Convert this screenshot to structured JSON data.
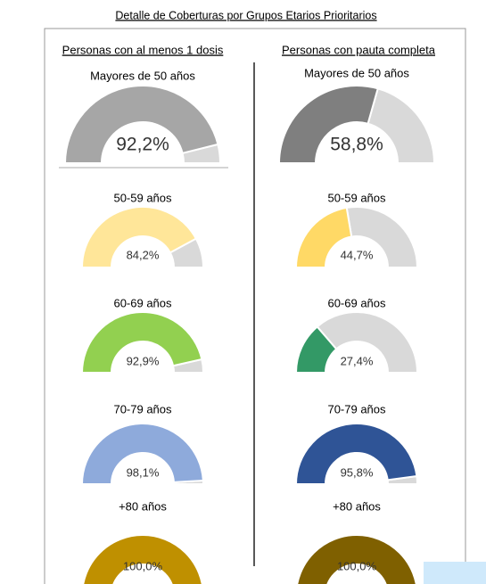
{
  "title": "Detalle de Coberturas por Grupos Etarios Prioritarios",
  "column_headings": [
    "Personas con al menos 1 dosis",
    "Personas con pauta completa"
  ],
  "chart_data": [
    {
      "type": "gauge",
      "title": "Mayores de 50 años",
      "values": [
        92.2
      ],
      "value_labels": [
        "92,2%"
      ],
      "color": "#a6a6a6",
      "ylim": [
        0,
        100
      ]
    },
    {
      "type": "gauge",
      "title": "50-59 años",
      "values": [
        84.2
      ],
      "value_labels": [
        "84,2%"
      ],
      "color": "#ffe699",
      "ylim": [
        0,
        100
      ]
    },
    {
      "type": "gauge",
      "title": "60-69 años",
      "values": [
        92.9
      ],
      "value_labels": [
        "92,9%"
      ],
      "color": "#92d050",
      "ylim": [
        0,
        100
      ]
    },
    {
      "type": "gauge",
      "title": "70-79 años",
      "values": [
        98.1
      ],
      "value_labels": [
        "98,1%"
      ],
      "color": "#8eaadb",
      "ylim": [
        0,
        100
      ]
    },
    {
      "type": "gauge",
      "title": "+80 años",
      "values": [
        100.0
      ],
      "value_labels": [
        "100,0%"
      ],
      "color": "#bf9000",
      "ylim": [
        0,
        100
      ]
    },
    {
      "type": "gauge",
      "title": "Mayores de 50 años",
      "values": [
        58.8
      ],
      "value_labels": [
        "58,8%"
      ],
      "color": "#7f7f7f",
      "ylim": [
        0,
        100
      ]
    },
    {
      "type": "gauge",
      "title": "50-59 años",
      "values": [
        44.7
      ],
      "value_labels": [
        "44,7%"
      ],
      "color": "#ffd966",
      "ylim": [
        0,
        100
      ]
    },
    {
      "type": "gauge",
      "title": "60-69 años",
      "values": [
        27.4
      ],
      "value_labels": [
        "27,4%"
      ],
      "color": "#339966",
      "ylim": [
        0,
        100
      ]
    },
    {
      "type": "gauge",
      "title": "70-79 años",
      "values": [
        95.8
      ],
      "value_labels": [
        "95,8%"
      ],
      "color": "#2f5496",
      "ylim": [
        0,
        100
      ]
    },
    {
      "type": "gauge",
      "title": "+80 años",
      "values": [
        100.0
      ],
      "value_labels": [
        "100,0%"
      ],
      "color": "#7f6000",
      "ylim": [
        0,
        100
      ]
    }
  ]
}
